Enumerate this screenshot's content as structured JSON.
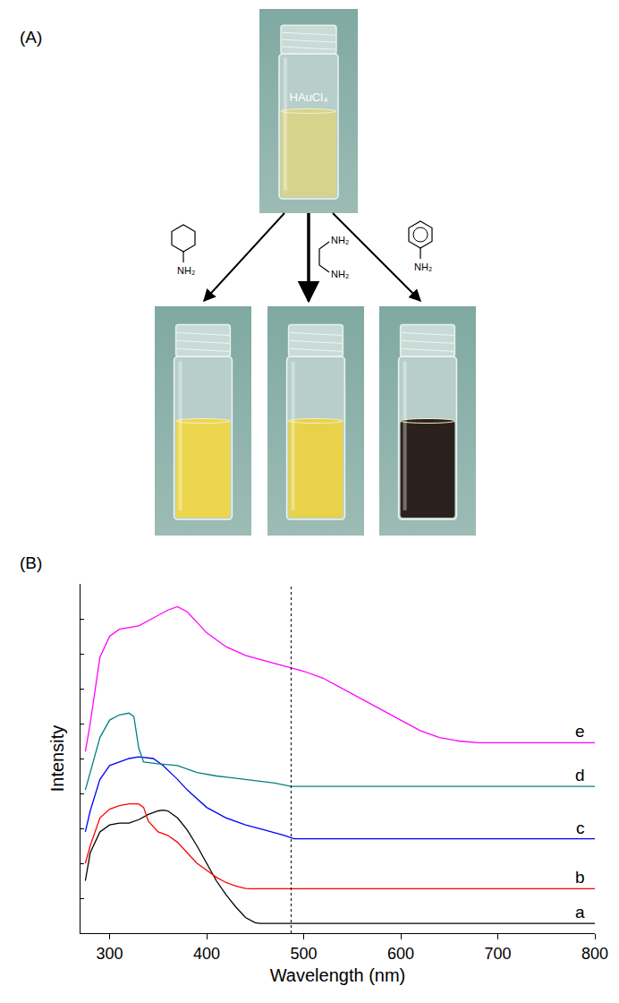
{
  "panel_a": {
    "label": "(A)",
    "reactant": {
      "text": "HAuCl₄",
      "color": "#d6d48c"
    },
    "products": [
      {
        "groups": [
          "NH₂"
        ],
        "color": "#ecd64e"
      },
      {
        "groups": [
          "NH₂",
          "NH₂"
        ],
        "color": "#e8d24a"
      },
      {
        "groups": [
          "NH₂"
        ],
        "color": "#2b211c"
      }
    ]
  },
  "panel_b": {
    "label": "(B)"
  },
  "chart_data": {
    "type": "line",
    "x_label": "Wavelength (nm)",
    "y_label": "Intensity",
    "xlim": [
      270,
      800
    ],
    "xticks": [
      300,
      400,
      500,
      600,
      700,
      800
    ],
    "ylim": [
      0,
      10
    ],
    "yticks": [
      0,
      1,
      2,
      3,
      4,
      5,
      6,
      7,
      8,
      9,
      10
    ],
    "tick_labels": "x",
    "grid": false,
    "dotted_line_x": 487,
    "series": [
      {
        "name": "a",
        "color": "#000000",
        "x": [
          275,
          280,
          290,
          300,
          310,
          320,
          330,
          340,
          350,
          355,
          360,
          370,
          380,
          390,
          400,
          410,
          420,
          430,
          440,
          450,
          455,
          800
        ],
        "values": [
          1.5,
          2.3,
          2.9,
          3.1,
          3.15,
          3.15,
          3.25,
          3.4,
          3.5,
          3.52,
          3.5,
          3.3,
          2.95,
          2.5,
          2.0,
          1.5,
          1.1,
          0.75,
          0.45,
          0.3,
          0.28,
          0.28
        ]
      },
      {
        "name": "b",
        "color": "#ff0000",
        "x": [
          275,
          280,
          290,
          300,
          310,
          320,
          330,
          335,
          340,
          350,
          360,
          370,
          380,
          390,
          400,
          410,
          420,
          430,
          440,
          445,
          800
        ],
        "values": [
          2.0,
          2.5,
          3.3,
          3.55,
          3.65,
          3.7,
          3.7,
          3.6,
          3.2,
          2.9,
          2.8,
          2.6,
          2.3,
          2.0,
          1.8,
          1.6,
          1.45,
          1.35,
          1.28,
          1.27,
          1.27
        ]
      },
      {
        "name": "c",
        "color": "#0000ff",
        "x": [
          275,
          280,
          290,
          300,
          310,
          320,
          330,
          345,
          355,
          370,
          380,
          400,
          420,
          440,
          460,
          480,
          490,
          800
        ],
        "values": [
          2.9,
          3.5,
          4.4,
          4.8,
          4.9,
          5.0,
          5.05,
          5.0,
          4.8,
          4.4,
          4.1,
          3.6,
          3.3,
          3.1,
          2.95,
          2.8,
          2.7,
          2.7
        ]
      },
      {
        "name": "d",
        "color": "#008080",
        "x": [
          275,
          280,
          290,
          300,
          310,
          320,
          325,
          330,
          335,
          350,
          370,
          390,
          410,
          440,
          470,
          487,
          800
        ],
        "values": [
          4.1,
          4.6,
          5.6,
          6.1,
          6.25,
          6.3,
          6.2,
          5.3,
          4.9,
          4.85,
          4.8,
          4.6,
          4.5,
          4.4,
          4.3,
          4.2,
          4.2
        ]
      },
      {
        "name": "e",
        "color": "#ff00ff",
        "x": [
          275,
          280,
          290,
          300,
          310,
          320,
          330,
          340,
          350,
          360,
          370,
          380,
          390,
          400,
          420,
          440,
          460,
          480,
          500,
          520,
          540,
          560,
          580,
          600,
          620,
          640,
          660,
          680,
          800
        ],
        "values": [
          5.2,
          6.0,
          7.9,
          8.5,
          8.7,
          8.75,
          8.8,
          8.95,
          9.1,
          9.25,
          9.35,
          9.2,
          8.9,
          8.6,
          8.2,
          7.95,
          7.8,
          7.65,
          7.5,
          7.3,
          7.0,
          6.7,
          6.4,
          6.1,
          5.8,
          5.6,
          5.5,
          5.45,
          5.45
        ]
      }
    ]
  }
}
